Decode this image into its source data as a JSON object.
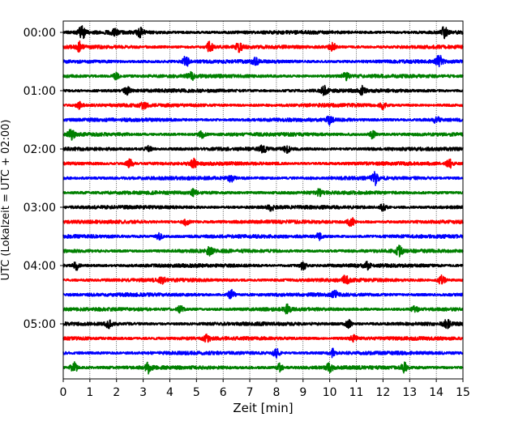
{
  "chart_data": {
    "type": "line",
    "title": "",
    "xlabel": "Zeit  [min]",
    "ylabel": "UTC (Lokalzeit = UTC + 02:00)",
    "xlim": [
      0,
      15
    ],
    "x_ticks": [
      "0",
      "1",
      "2",
      "3",
      "4",
      "5",
      "6",
      "7",
      "8",
      "9",
      "10",
      "11",
      "12",
      "13",
      "14",
      "15"
    ],
    "y_ticks": [
      "00:00",
      "01:00",
      "02:00",
      "03:00",
      "04:00",
      "05:00"
    ],
    "grid": "vertical dotted lines at each minute",
    "trace_interval_minutes": 15,
    "color_cycle": [
      "#000000",
      "#ff0000",
      "#0000ff",
      "#008000"
    ],
    "traces": [
      {
        "start": "00:00",
        "color": "#000000",
        "bursts": [
          [
            0.7,
            2.0
          ],
          [
            1.9,
            1.6
          ],
          [
            2.9,
            1.4
          ],
          [
            14.3,
            1.8
          ]
        ]
      },
      {
        "start": "00:15",
        "color": "#ff0000",
        "bursts": [
          [
            0.6,
            1.5
          ],
          [
            5.5,
            1.8
          ],
          [
            6.6,
            1.4
          ],
          [
            10.1,
            1.4
          ]
        ]
      },
      {
        "start": "00:30",
        "color": "#0000ff",
        "bursts": [
          [
            4.6,
            1.6
          ],
          [
            7.2,
            1.1
          ],
          [
            14.1,
            2.0
          ]
        ]
      },
      {
        "start": "00:45",
        "color": "#008000",
        "bursts": [
          [
            2.0,
            1.1
          ],
          [
            4.8,
            1.2
          ],
          [
            10.6,
            1.1
          ]
        ]
      },
      {
        "start": "01:00",
        "color": "#000000",
        "bursts": [
          [
            2.4,
            1.1
          ],
          [
            9.8,
            1.5
          ],
          [
            11.2,
            1.2
          ]
        ]
      },
      {
        "start": "01:15",
        "color": "#ff0000",
        "bursts": [
          [
            0.6,
            1.0
          ],
          [
            3.0,
            1.0
          ],
          [
            12.0,
            1.0
          ]
        ]
      },
      {
        "start": "01:30",
        "color": "#0000ff",
        "bursts": [
          [
            10.0,
            1.4
          ],
          [
            14.0,
            0.9
          ]
        ]
      },
      {
        "start": "01:45",
        "color": "#008000",
        "bursts": [
          [
            0.3,
            1.4
          ],
          [
            5.2,
            1.0
          ],
          [
            11.6,
            1.2
          ]
        ]
      },
      {
        "start": "02:00",
        "color": "#000000",
        "bursts": [
          [
            3.2,
            0.9
          ],
          [
            7.5,
            1.0
          ],
          [
            8.4,
            1.1
          ]
        ]
      },
      {
        "start": "02:15",
        "color": "#ff0000",
        "bursts": [
          [
            2.5,
            1.4
          ],
          [
            4.9,
            1.3
          ],
          [
            14.5,
            1.2
          ]
        ]
      },
      {
        "start": "02:30",
        "color": "#0000ff",
        "bursts": [
          [
            6.3,
            1.0
          ],
          [
            11.7,
            2.0
          ]
        ]
      },
      {
        "start": "02:45",
        "color": "#008000",
        "bursts": [
          [
            4.9,
            1.0
          ],
          [
            9.6,
            1.0
          ]
        ]
      },
      {
        "start": "03:00",
        "color": "#000000",
        "bursts": [
          [
            7.8,
            1.0
          ],
          [
            12.0,
            1.0
          ]
        ]
      },
      {
        "start": "03:15",
        "color": "#ff0000",
        "bursts": [
          [
            4.6,
            1.0
          ],
          [
            10.8,
            1.4
          ]
        ]
      },
      {
        "start": "03:30",
        "color": "#0000ff",
        "bursts": [
          [
            3.6,
            0.9
          ],
          [
            9.6,
            1.0
          ]
        ]
      },
      {
        "start": "03:45",
        "color": "#008000",
        "bursts": [
          [
            5.5,
            1.2
          ],
          [
            12.6,
            1.5
          ]
        ]
      },
      {
        "start": "04:00",
        "color": "#000000",
        "bursts": [
          [
            0.5,
            1.2
          ],
          [
            9.0,
            1.4
          ],
          [
            11.4,
            1.1
          ]
        ]
      },
      {
        "start": "04:15",
        "color": "#ff0000",
        "bursts": [
          [
            3.7,
            1.0
          ],
          [
            10.6,
            1.4
          ],
          [
            14.2,
            1.6
          ]
        ]
      },
      {
        "start": "04:30",
        "color": "#0000ff",
        "bursts": [
          [
            6.3,
            1.5
          ],
          [
            10.2,
            1.0
          ]
        ]
      },
      {
        "start": "04:45",
        "color": "#008000",
        "bursts": [
          [
            4.4,
            1.2
          ],
          [
            8.4,
            1.2
          ],
          [
            13.2,
            1.2
          ]
        ]
      },
      {
        "start": "05:00",
        "color": "#000000",
        "bursts": [
          [
            1.7,
            1.2
          ],
          [
            10.7,
            1.2
          ],
          [
            14.4,
            1.1
          ]
        ]
      },
      {
        "start": "05:15",
        "color": "#ff0000",
        "bursts": [
          [
            5.4,
            1.0
          ],
          [
            10.9,
            1.0
          ]
        ]
      },
      {
        "start": "05:30",
        "color": "#0000ff",
        "bursts": [
          [
            8.0,
            1.4
          ],
          [
            10.1,
            1.2
          ]
        ]
      },
      {
        "start": "05:45",
        "color": "#008000",
        "bursts": [
          [
            0.4,
            1.8
          ],
          [
            3.2,
            1.6
          ],
          [
            8.1,
            1.6
          ],
          [
            10.0,
            1.3
          ],
          [
            12.8,
            1.4
          ]
        ]
      }
    ]
  }
}
